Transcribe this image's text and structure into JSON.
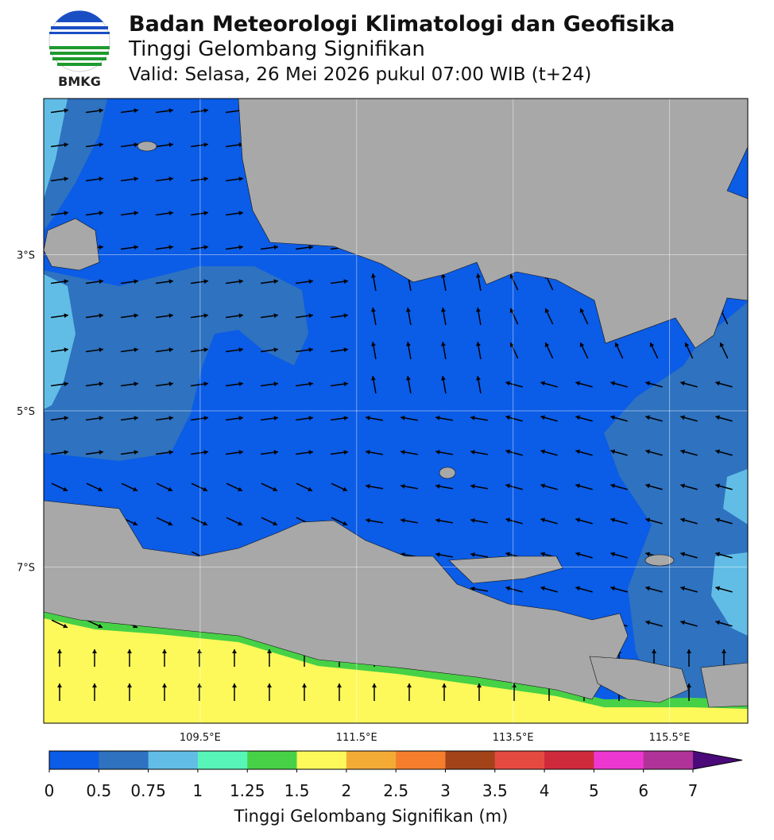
{
  "header": {
    "agency": "Badan Meteorologi Klimatologi dan Geofisika",
    "title": "Tinggi Gelombang Signifikan",
    "valid": "Valid: Selasa, 26 Mei 2026 pukul 07:00 WIB (t+24)",
    "logo_text": "BMKG"
  },
  "map": {
    "lon_range": [
      107.5,
      116.5
    ],
    "lat_range": [
      -9,
      -1
    ],
    "lat_ticks": [
      {
        "value": -3,
        "label": "3°S"
      },
      {
        "value": -5,
        "label": "5°S"
      },
      {
        "value": -7,
        "label": "7°S"
      }
    ],
    "lon_ticks": [
      {
        "value": 109.5,
        "label": "109.5°E"
      },
      {
        "value": 111.5,
        "label": "111.5°E"
      },
      {
        "value": 113.5,
        "label": "113.5°E"
      },
      {
        "value": 115.5,
        "label": "115.5°E"
      }
    ]
  },
  "colorbar": {
    "title": "Tinggi Gelombang Signifikan (m)",
    "bounds": [
      0,
      0.5,
      0.75,
      1,
      1.25,
      1.5,
      2,
      2.5,
      3,
      3.5,
      4,
      5,
      6,
      7
    ],
    "colors": [
      "#0b5ce6",
      "#2e72c0",
      "#62bde6",
      "#57f5b8",
      "#47d146",
      "#fdf95a",
      "#f4ab36",
      "#f57e2c",
      "#a2431a",
      "#e54a41",
      "#cf2a3b",
      "#ec38d0",
      "#b03399"
    ],
    "extend_color": "#4a0a7a"
  }
}
